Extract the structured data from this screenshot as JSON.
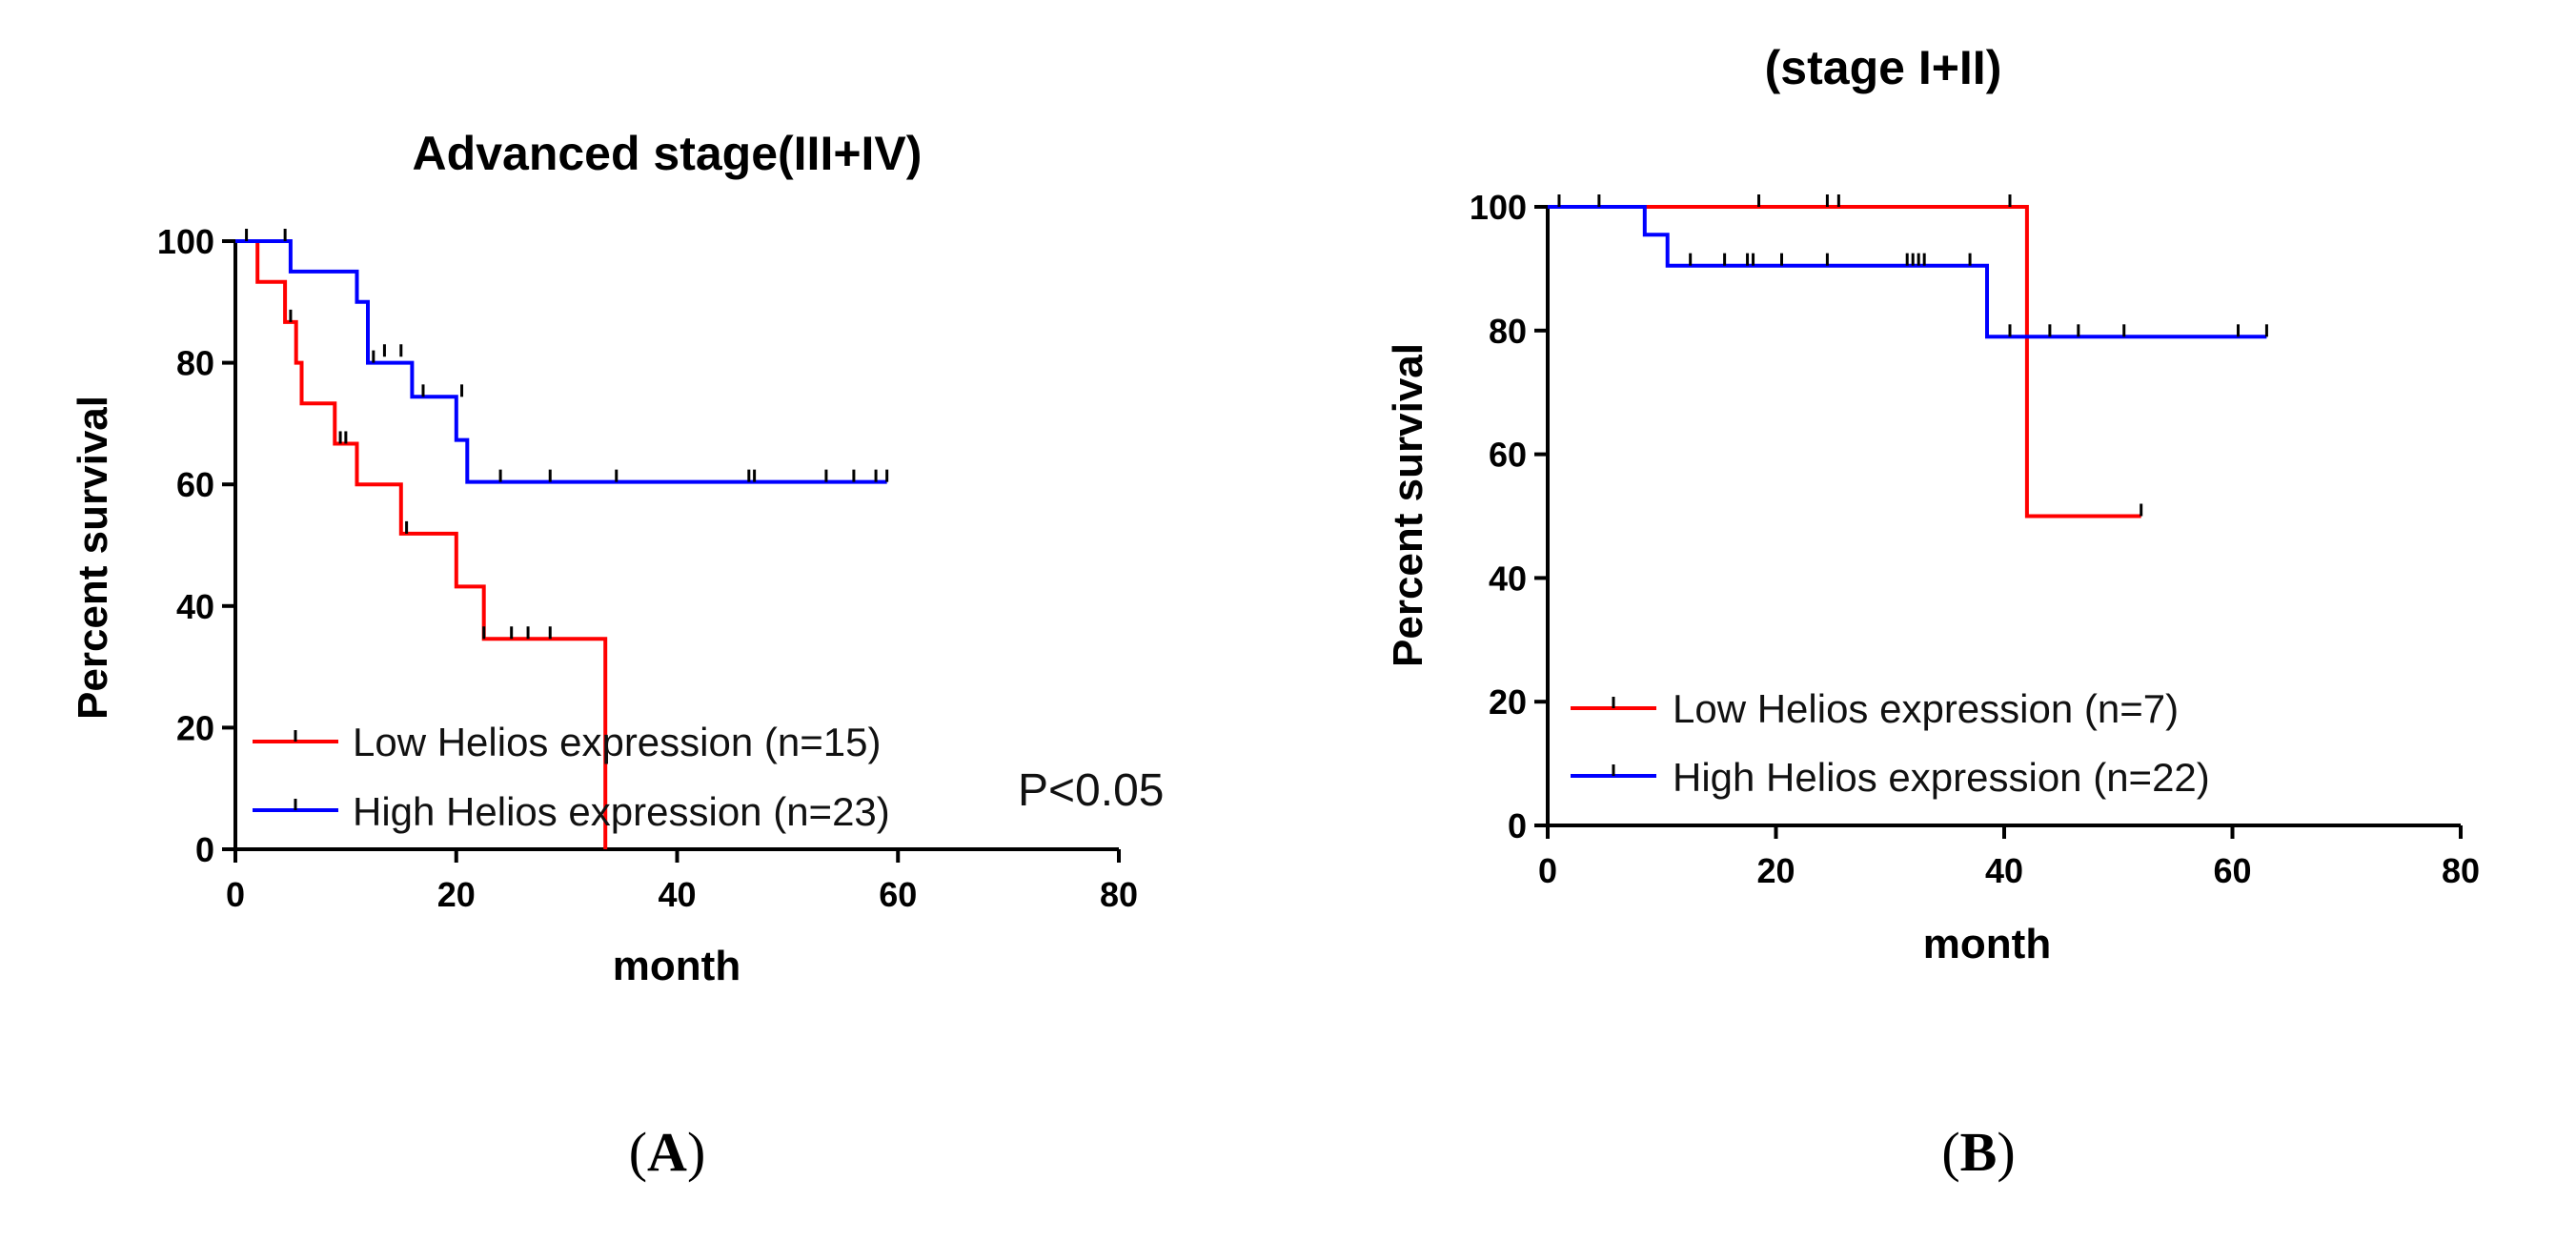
{
  "chart_data": [
    {
      "type": "line",
      "subtype": "kaplan-meier",
      "panel_label": "A",
      "title": "Advanced stage(III+IV)",
      "xlabel": "month",
      "ylabel": "Percent survival",
      "xlim": [
        0,
        80
      ],
      "ylim": [
        0,
        100
      ],
      "xticks": [
        0,
        20,
        40,
        60,
        80
      ],
      "yticks": [
        0,
        20,
        40,
        60,
        80,
        100
      ],
      "annotation": "P<0.05",
      "legend_position": "bottom-left",
      "series": [
        {
          "name": "Low Helios expression (n=15)",
          "color": "#ff0000",
          "steps": [
            [
              0,
              100
            ],
            [
              2,
              100
            ],
            [
              2,
              93.3
            ],
            [
              4.5,
              93.3
            ],
            [
              4.5,
              86.7
            ],
            [
              5.5,
              86.7
            ],
            [
              5.5,
              80
            ],
            [
              6,
              80
            ],
            [
              6,
              73.3
            ],
            [
              9,
              73.3
            ],
            [
              9,
              66.7
            ],
            [
              11,
              66.7
            ],
            [
              11,
              60
            ],
            [
              15,
              60
            ],
            [
              15,
              51.9
            ],
            [
              20,
              51.9
            ],
            [
              20,
              43.2
            ],
            [
              22.5,
              43.2
            ],
            [
              22.5,
              34.6
            ],
            [
              33.5,
              34.6
            ],
            [
              33.5,
              0
            ]
          ],
          "censored": [
            [
              5,
              86.7
            ],
            [
              9.5,
              66.7
            ],
            [
              10,
              66.7
            ],
            [
              15.5,
              51.9
            ],
            [
              22.5,
              34.6
            ],
            [
              25,
              34.6
            ],
            [
              26.5,
              34.6
            ],
            [
              28.5,
              34.6
            ]
          ]
        },
        {
          "name": "High Helios expression (n=23)",
          "color": "#0000ff",
          "steps": [
            [
              0,
              100
            ],
            [
              5,
              100
            ],
            [
              5,
              95
            ],
            [
              11,
              95
            ],
            [
              11,
              90
            ],
            [
              12,
              90
            ],
            [
              12,
              80
            ],
            [
              16,
              80
            ],
            [
              16,
              74.4
            ],
            [
              20,
              74.4
            ],
            [
              20,
              67.3
            ],
            [
              21,
              67.3
            ],
            [
              21,
              60.4
            ],
            [
              59,
              60.4
            ]
          ],
          "censored": [
            [
              1,
              100
            ],
            [
              4.5,
              100
            ],
            [
              12.5,
              80
            ],
            [
              13.5,
              81
            ],
            [
              15,
              81
            ],
            [
              17,
              74.4
            ],
            [
              20.5,
              74.4
            ],
            [
              24,
              60.4
            ],
            [
              28.5,
              60.4
            ],
            [
              34.5,
              60.4
            ],
            [
              46.5,
              60.4
            ],
            [
              47,
              60.4
            ],
            [
              53.5,
              60.4
            ],
            [
              56,
              60.4
            ],
            [
              58,
              60.4
            ],
            [
              59,
              60.4
            ]
          ]
        }
      ]
    },
    {
      "type": "line",
      "subtype": "kaplan-meier",
      "panel_label": "B",
      "title": "(stage I+II)",
      "xlabel": "month",
      "ylabel": "Percent survival",
      "xlim": [
        0,
        80
      ],
      "ylim": [
        0,
        100
      ],
      "xticks": [
        0,
        20,
        40,
        60,
        80
      ],
      "yticks": [
        0,
        20,
        40,
        60,
        80,
        100
      ],
      "legend_position": "bottom-left",
      "series": [
        {
          "name": "Low Helios expression (n=7)",
          "color": "#ff0000",
          "steps": [
            [
              0,
              100
            ],
            [
              42,
              100
            ],
            [
              42,
              50
            ],
            [
              52,
              50
            ]
          ],
          "censored": [
            [
              18.5,
              100
            ],
            [
              24.5,
              100
            ],
            [
              25.5,
              100
            ],
            [
              40.5,
              100
            ],
            [
              52,
              50
            ]
          ]
        },
        {
          "name": "High Helios expression (n=22)",
          "color": "#0000ff",
          "steps": [
            [
              0,
              100
            ],
            [
              8.5,
              100
            ],
            [
              8.5,
              95.5
            ],
            [
              10.5,
              95.5
            ],
            [
              10.5,
              90.5
            ],
            [
              38.5,
              90.5
            ],
            [
              38.5,
              79
            ],
            [
              63,
              79
            ]
          ],
          "censored": [
            [
              1,
              100
            ],
            [
              4.5,
              100
            ],
            [
              12.5,
              90.5
            ],
            [
              15.5,
              90.5
            ],
            [
              17.5,
              90.5
            ],
            [
              18,
              90.5
            ],
            [
              20.5,
              90.5
            ],
            [
              24.5,
              90.5
            ],
            [
              31.5,
              90.5
            ],
            [
              32,
              90.5
            ],
            [
              32.5,
              90.5
            ],
            [
              33,
              90.5
            ],
            [
              37,
              90.5
            ],
            [
              40.5,
              79
            ],
            [
              44,
              79
            ],
            [
              46.5,
              79
            ],
            [
              50.5,
              79
            ],
            [
              60.5,
              79
            ],
            [
              63,
              79
            ]
          ]
        }
      ]
    }
  ]
}
